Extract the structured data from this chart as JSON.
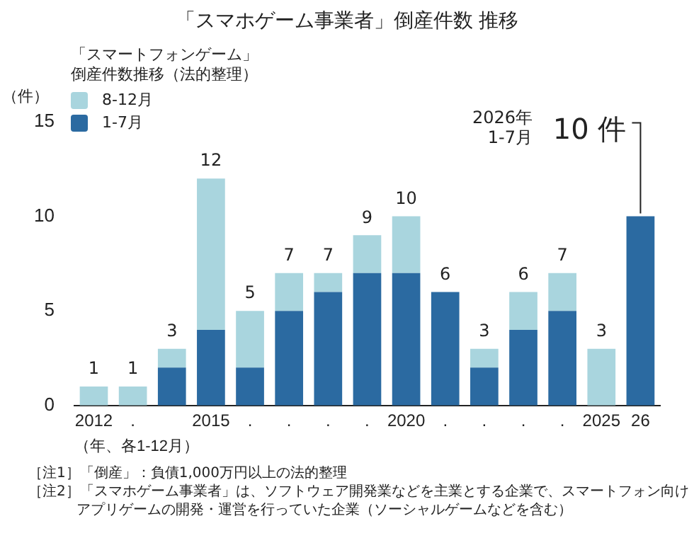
{
  "chart_data": {
    "type": "bar",
    "title": "「スマホゲーム事業者」倒産件数 推移",
    "legend_title": "「スマートフォンゲーム」倒産件数推移（法的整理）",
    "ylabel": "（件）",
    "xlabel": "（年、各1-12月）",
    "categories": [
      "2012",
      ".",
      null,
      "2015",
      ".",
      ".",
      ".",
      ".",
      "2020",
      ".",
      ".",
      ".",
      ".",
      "2025",
      "26"
    ],
    "stacked": true,
    "legend": "top left",
    "grid": false,
    "series": [
      {
        "name": "1-7月",
        "color": "#2b6aa1",
        "values": [
          0,
          0,
          2,
          4,
          2,
          5,
          6,
          7,
          7,
          6,
          2,
          4,
          5,
          0,
          10
        ]
      },
      {
        "name": "8-12月",
        "color": "#a9d5de",
        "values": [
          1,
          1,
          1,
          8,
          3,
          2,
          1,
          2,
          3,
          0,
          1,
          2,
          2,
          3,
          null
        ]
      }
    ],
    "totals": [
      "1",
      "1",
      "3",
      "12",
      "5",
      "7",
      "7",
      "9",
      "10",
      "6",
      "3",
      "6",
      "7",
      "3",
      null
    ],
    "ylim": [
      0,
      15
    ],
    "yticks": [
      0,
      5,
      10,
      15
    ],
    "annotations": [
      "2026年1-7月",
      {
        "text": "10 件",
        "x": "26",
        "y": 10
      },
      "［注1］「倒産」：負債1,000万円以上の法的整理",
      "［注2］「スマホゲーム事業者」は、ソフトウェア開発業などを主業とする企業で、スマートフォン向けアプリゲームの開発・運営を行っていた企業（ソーシャルゲームなどを含む）"
    ]
  }
}
